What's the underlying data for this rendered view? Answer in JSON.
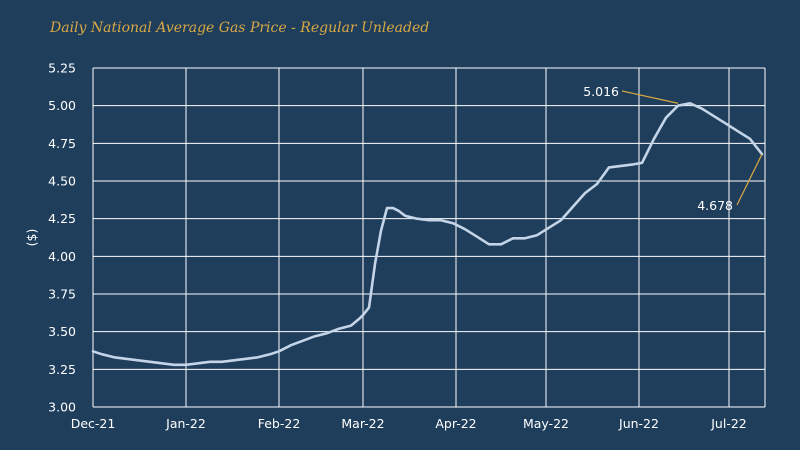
{
  "chart_data": {
    "type": "line",
    "title": "Daily National Average Gas Price - Regular Unleaded",
    "xlabel": "",
    "ylabel": "($)",
    "ylim": [
      3.0,
      5.25
    ],
    "yticks": [
      "3.00",
      "3.25",
      "3.50",
      "3.75",
      "4.00",
      "4.25",
      "4.50",
      "4.75",
      "5.00",
      "5.25"
    ],
    "xlim": [
      "2021-12-01",
      "2022-07-13"
    ],
    "xticks": [
      {
        "label": "Dec-21",
        "date": "2021-12-01"
      },
      {
        "label": "Jan-22",
        "date": "2022-01-01"
      },
      {
        "label": "Feb-22",
        "date": "2022-02-01"
      },
      {
        "label": "Mar-22",
        "date": "2022-03-01"
      },
      {
        "label": "Apr-22",
        "date": "2022-04-01"
      },
      {
        "label": "May-22",
        "date": "2022-05-01"
      },
      {
        "label": "Jun-22",
        "date": "2022-06-01"
      },
      {
        "label": "Jul-22",
        "date": "2022-07-01"
      }
    ],
    "grid": true,
    "line_color": "#c5d5e8",
    "annotation_color": "#d9a843",
    "series": [
      {
        "x": [
          "2021-12-01",
          "2021-12-04",
          "2021-12-08",
          "2021-12-12",
          "2021-12-16",
          "2021-12-20",
          "2021-12-24",
          "2021-12-28",
          "2022-01-01",
          "2022-01-05",
          "2022-01-09",
          "2022-01-13",
          "2022-01-17",
          "2022-01-21",
          "2022-01-25",
          "2022-01-29",
          "2022-02-01",
          "2022-02-05",
          "2022-02-09",
          "2022-02-13",
          "2022-02-17",
          "2022-02-21",
          "2022-02-25",
          "2022-02-28",
          "2022-03-01",
          "2022-03-03",
          "2022-03-05",
          "2022-03-07",
          "2022-03-09",
          "2022-03-11",
          "2022-03-13",
          "2022-03-15",
          "2022-03-19",
          "2022-03-23",
          "2022-03-27",
          "2022-03-31",
          "2022-04-04",
          "2022-04-08",
          "2022-04-12",
          "2022-04-16",
          "2022-04-20",
          "2022-04-24",
          "2022-04-28",
          "2022-05-02",
          "2022-05-06",
          "2022-05-10",
          "2022-05-14",
          "2022-05-18",
          "2022-05-22",
          "2022-05-26",
          "2022-05-30",
          "2022-06-02",
          "2022-06-06",
          "2022-06-10",
          "2022-06-14",
          "2022-06-18",
          "2022-06-22",
          "2022-06-26",
          "2022-06-30",
          "2022-07-04",
          "2022-07-08",
          "2022-07-12"
        ],
        "y": [
          3.37,
          3.35,
          3.33,
          3.32,
          3.31,
          3.3,
          3.29,
          3.28,
          3.28,
          3.29,
          3.3,
          3.3,
          3.31,
          3.32,
          3.33,
          3.35,
          3.37,
          3.41,
          3.44,
          3.47,
          3.49,
          3.52,
          3.54,
          3.59,
          3.61,
          3.66,
          3.95,
          4.17,
          4.32,
          4.32,
          4.3,
          4.27,
          4.25,
          4.24,
          4.24,
          4.22,
          4.18,
          4.13,
          4.08,
          4.08,
          4.12,
          4.12,
          4.14,
          4.19,
          4.24,
          4.33,
          4.42,
          4.48,
          4.59,
          4.6,
          4.61,
          4.62,
          4.78,
          4.92,
          5.0,
          5.016,
          4.98,
          4.93,
          4.88,
          4.83,
          4.78,
          4.678
        ]
      }
    ],
    "annotations": [
      {
        "text": "5.016",
        "x": "2022-06-14",
        "y": 5.016
      },
      {
        "text": "4.678",
        "x": "2022-07-12",
        "y": 4.678
      }
    ]
  }
}
